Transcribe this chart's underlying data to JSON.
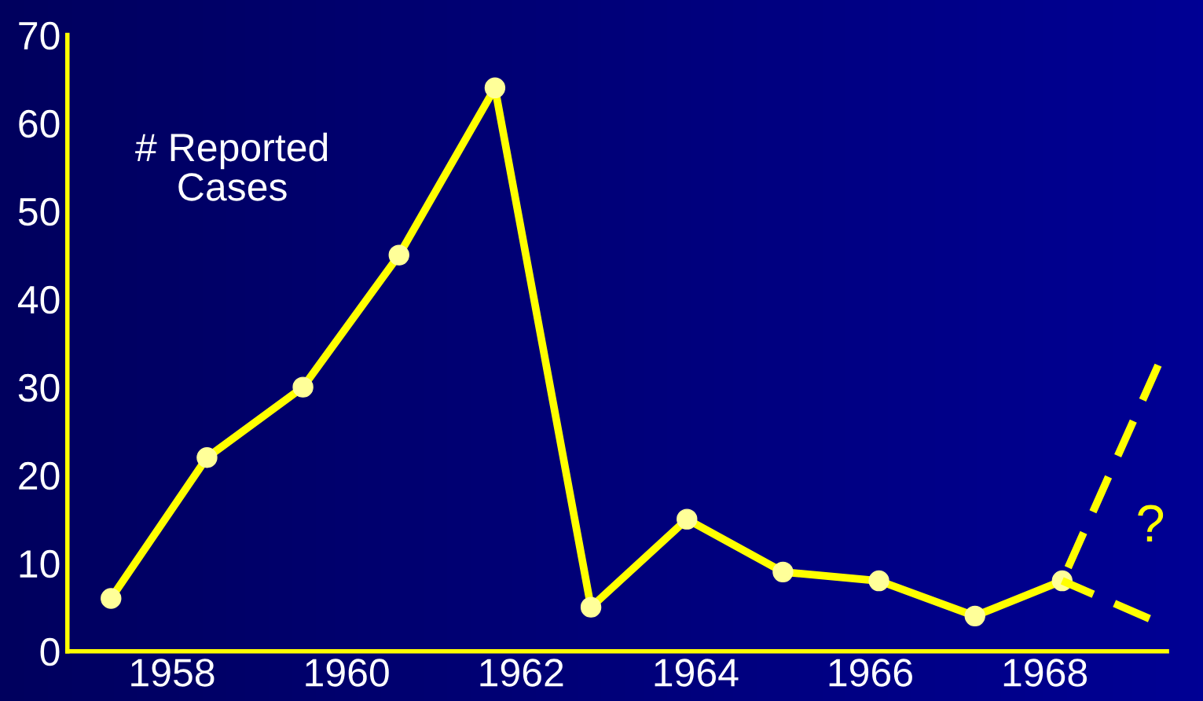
{
  "chart_data": {
    "type": "line",
    "annotations": [
      "# Reported\nCases",
      "?"
    ],
    "series": [
      {
        "color": "#ffff00",
        "x": [
          1957.3,
          1958.4,
          1959.5,
          1960.6,
          1961.7,
          1962.8,
          1963.9,
          1965.0,
          1966.1,
          1967.2,
          1968.2
        ],
        "values": [
          6,
          22,
          30,
          45,
          64,
          5,
          15,
          9,
          8,
          4,
          8
        ],
        "marker": "circle"
      },
      {
        "color": "#ffff00",
        "x": [
          1968.2,
          1969.3
        ],
        "values": [
          8,
          32.5
        ],
        "line_style": "dashed",
        "marker": "none"
      },
      {
        "color": "#ffff00",
        "x": [
          1968.2,
          1969.2
        ],
        "values": [
          8,
          3.7
        ],
        "line_style": "dashed",
        "marker": "none"
      }
    ],
    "xlim": [
      1956.8,
      1969.4
    ],
    "xticks": [
      1958,
      1960,
      1962,
      1964,
      1966,
      1968
    ],
    "ylim": [
      0,
      70
    ],
    "yticks": [
      0,
      10,
      20,
      30,
      40,
      50,
      60,
      70
    ],
    "grid": false,
    "legend": false
  }
}
